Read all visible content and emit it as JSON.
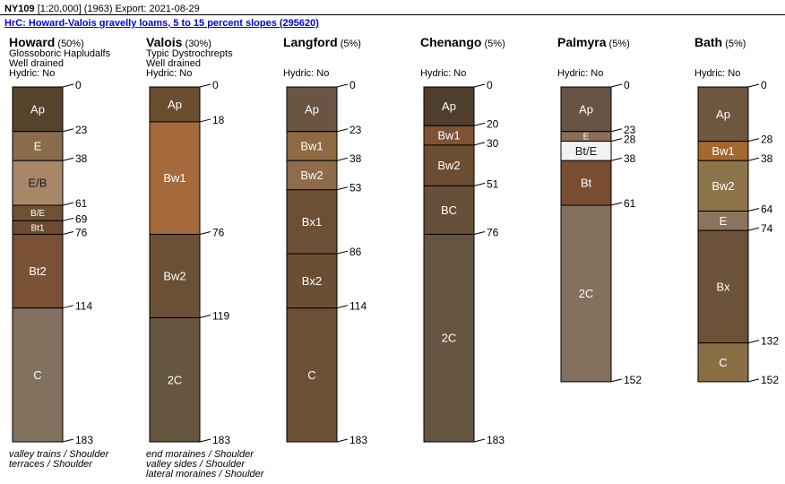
{
  "header": {
    "code": "NY109",
    "details": "[1:20,000] (1963) Export: 2021-08-29",
    "map_unit_link": "HrC: Howard-Valois gravelly loams, 5 to 15 percent slopes (295620)"
  },
  "components": [
    {
      "name": "Howard",
      "percent": "(50%)",
      "taxonomy": "Glossoboric Hapludalfs",
      "drainage": "Well drained",
      "hydric": "Hydric: No",
      "landform": [
        "valley trains / Shoulder",
        "terraces / Shoulder"
      ],
      "horizons": [
        {
          "name": "Ap",
          "top": 0,
          "bottom": 23,
          "color": "#55432b"
        },
        {
          "name": "E",
          "top": 23,
          "bottom": 38,
          "color": "#8a6c4d"
        },
        {
          "name": "E/B",
          "top": 38,
          "bottom": 61,
          "color": "#a88668",
          "dark": true
        },
        {
          "name": "B/E",
          "top": 61,
          "bottom": 69,
          "color": "#6f5234"
        },
        {
          "name": "Bt1",
          "top": 69,
          "bottom": 76,
          "color": "#6e4b30"
        },
        {
          "name": "Bt2",
          "top": 76,
          "bottom": 114,
          "color": "#7a5136"
        },
        {
          "name": "C",
          "top": 114,
          "bottom": 183,
          "color": "#83715f"
        }
      ],
      "depth_ticks": [
        0,
        23,
        38,
        61,
        69,
        76,
        114,
        183
      ],
      "max_depth": 183
    },
    {
      "name": "Valois",
      "percent": "(30%)",
      "taxonomy": "Typic Dystrochrepts",
      "drainage": "Well drained",
      "hydric": "Hydric: No",
      "landform": [
        "end moraines / Shoulder",
        "valley sides / Shoulder",
        "lateral moraines / Shoulder"
      ],
      "horizons": [
        {
          "name": "Ap",
          "top": 0,
          "bottom": 18,
          "color": "#6b4e30"
        },
        {
          "name": "Bw1",
          "top": 18,
          "bottom": 76,
          "color": "#a46a3b"
        },
        {
          "name": "Bw2",
          "top": 76,
          "bottom": 119,
          "color": "#6b5035"
        },
        {
          "name": "2C",
          "top": 119,
          "bottom": 183,
          "color": "#66553f"
        }
      ],
      "depth_ticks": [
        0,
        18,
        76,
        119,
        183
      ],
      "max_depth": 183
    },
    {
      "name": "Langford",
      "percent": "(5%)",
      "taxonomy": "",
      "drainage": "",
      "hydric": "Hydric: No",
      "landform": [],
      "horizons": [
        {
          "name": "Ap",
          "top": 0,
          "bottom": 23,
          "color": "#6a5443"
        },
        {
          "name": "Bw1",
          "top": 23,
          "bottom": 38,
          "color": "#8e6942"
        },
        {
          "name": "Bw2",
          "top": 38,
          "bottom": 53,
          "color": "#8d6b4b"
        },
        {
          "name": "Bx1",
          "top": 53,
          "bottom": 86,
          "color": "#6c4f34"
        },
        {
          "name": "Bx2",
          "top": 86,
          "bottom": 114,
          "color": "#6b4f35"
        },
        {
          "name": "C",
          "top": 114,
          "bottom": 183,
          "color": "#6c5036"
        }
      ],
      "depth_ticks": [
        0,
        23,
        38,
        53,
        86,
        114,
        183
      ],
      "max_depth": 183
    },
    {
      "name": "Chenango",
      "percent": "(5%)",
      "taxonomy": "",
      "drainage": "",
      "hydric": "Hydric: No",
      "landform": [],
      "horizons": [
        {
          "name": "Ap",
          "top": 0,
          "bottom": 20,
          "color": "#4f3e2e"
        },
        {
          "name": "Bw1",
          "top": 20,
          "bottom": 30,
          "color": "#7e5233"
        },
        {
          "name": "Bw2",
          "top": 30,
          "bottom": 51,
          "color": "#6c4e33"
        },
        {
          "name": "BC",
          "top": 51,
          "bottom": 76,
          "color": "#675039"
        },
        {
          "name": "2C",
          "top": 76,
          "bottom": 183,
          "color": "#665543"
        }
      ],
      "depth_ticks": [
        0,
        20,
        30,
        51,
        76,
        183
      ],
      "max_depth": 183
    },
    {
      "name": "Palmyra",
      "percent": "(5%)",
      "taxonomy": "",
      "drainage": "",
      "hydric": "Hydric: No",
      "landform": [],
      "horizons": [
        {
          "name": "Ap",
          "top": 0,
          "bottom": 23,
          "color": "#675444"
        },
        {
          "name": "E",
          "top": 23,
          "bottom": 28,
          "color": "#8a6e58"
        },
        {
          "name": "Bt/E",
          "top": 28,
          "bottom": 38,
          "color": "#f2f2f2",
          "dark": true
        },
        {
          "name": "Bt",
          "top": 38,
          "bottom": 61,
          "color": "#7a4d33"
        },
        {
          "name": "2C",
          "top": 61,
          "bottom": 152,
          "color": "#83705f"
        }
      ],
      "depth_ticks": [
        0,
        23,
        28,
        38,
        61,
        152
      ],
      "max_depth": 152
    },
    {
      "name": "Bath",
      "percent": "(5%)",
      "taxonomy": "",
      "drainage": "",
      "hydric": "Hydric: No",
      "landform": [],
      "horizons": [
        {
          "name": "Ap",
          "top": 0,
          "bottom": 28,
          "color": "#6e5640"
        },
        {
          "name": "Bw1",
          "top": 28,
          "bottom": 38,
          "color": "#a3682d"
        },
        {
          "name": "Bw2",
          "top": 38,
          "bottom": 64,
          "color": "#8c7548"
        },
        {
          "name": "E",
          "top": 64,
          "bottom": 74,
          "color": "#8a745e"
        },
        {
          "name": "Bx",
          "top": 74,
          "bottom": 132,
          "color": "#6b5238"
        },
        {
          "name": "C",
          "top": 132,
          "bottom": 152,
          "color": "#8b6f44"
        }
      ],
      "depth_ticks": [
        0,
        28,
        38,
        64,
        74,
        132,
        152
      ],
      "max_depth": 152
    }
  ]
}
